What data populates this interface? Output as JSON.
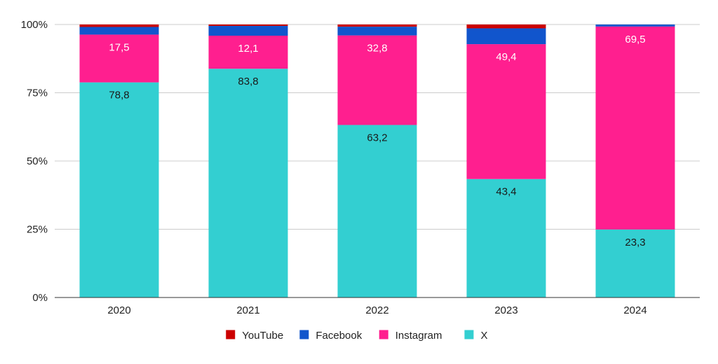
{
  "chart_data": {
    "type": "bar",
    "stacked": true,
    "normalized_percent": true,
    "categories": [
      "2020",
      "2021",
      "2022",
      "2023",
      "2024"
    ],
    "series": [
      {
        "name": "X",
        "color": "#33cfd1",
        "values": [
          78.8,
          83.8,
          63.2,
          43.4,
          23.3
        ],
        "labels": [
          "78,8",
          "83,8",
          "63,2",
          "43,4",
          "23,3"
        ],
        "label_color": "#1a1a1a"
      },
      {
        "name": "Instagram",
        "color": "#ff1f8f",
        "values": [
          17.5,
          12.1,
          32.8,
          49.4,
          69.5
        ],
        "labels": [
          "17,5",
          "12,1",
          "32,8",
          "49,4",
          "69,5"
        ],
        "label_color": "#ffffff"
      },
      {
        "name": "Facebook",
        "color": "#1155cc",
        "values": [
          2.8,
          3.6,
          3.2,
          5.8,
          0.7
        ],
        "labels": null
      },
      {
        "name": "YouTube",
        "color": "#cc0000",
        "values": [
          0.9,
          0.5,
          0.8,
          1.4,
          0.0
        ],
        "labels": null
      }
    ],
    "y_ticks": [
      "0%",
      "25%",
      "50%",
      "75%",
      "100%"
    ],
    "ylim": [
      0,
      100
    ],
    "grid": true,
    "legend": {
      "position": "bottom",
      "order": [
        "YouTube",
        "Facebook",
        "Instagram",
        "X"
      ]
    }
  }
}
